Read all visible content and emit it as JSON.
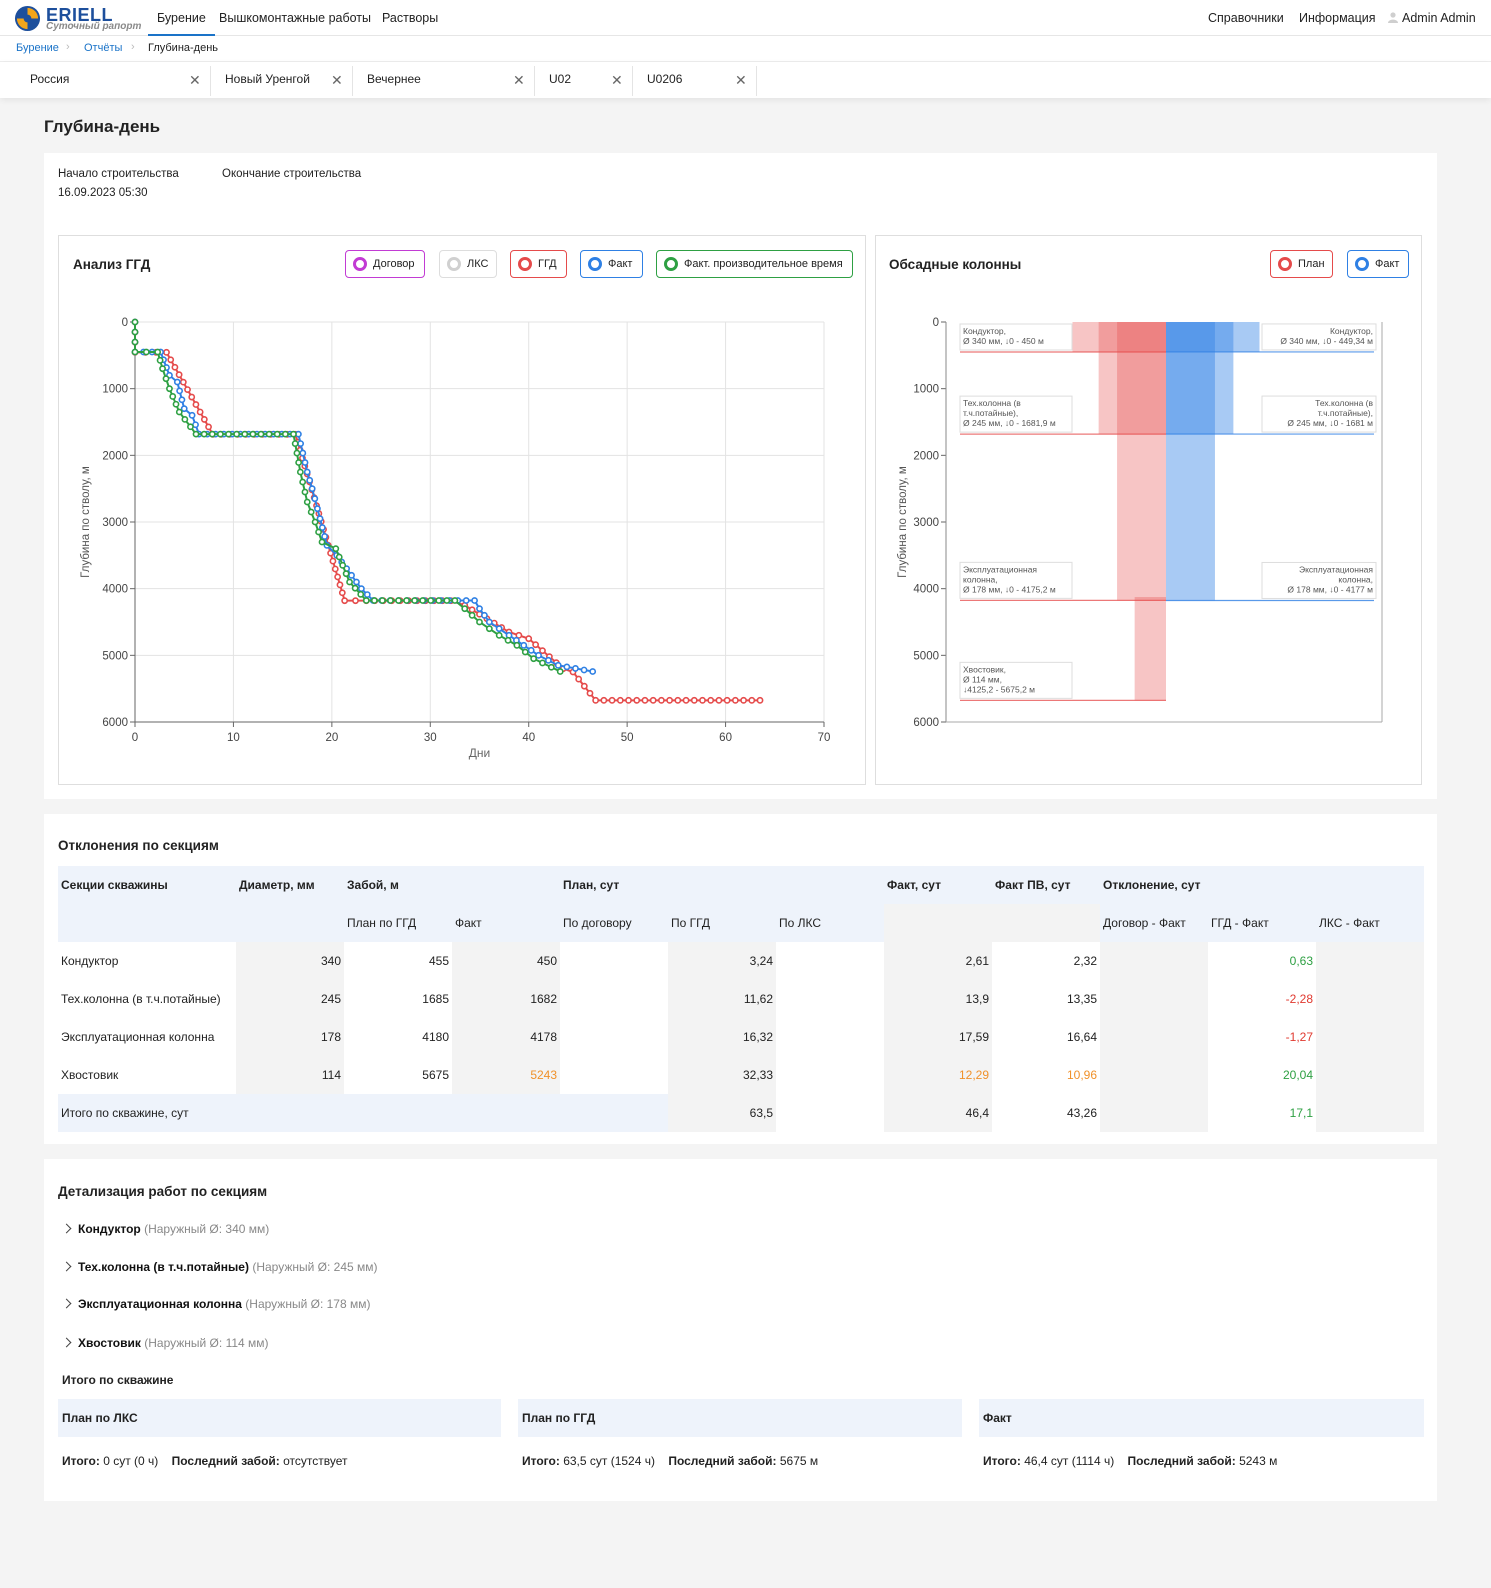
{
  "brand": {
    "name": "ERIELL",
    "subtitle": "Суточный рапорт"
  },
  "nav": {
    "main": [
      "Бурение",
      "Вышкомонтажные работы",
      "Растворы"
    ],
    "right": [
      "Справочники",
      "Информация"
    ],
    "user": "Admin Admin"
  },
  "breadcrumb": [
    "Бурение",
    "Отчёты",
    "Глубина-день"
  ],
  "filters": [
    "Россия",
    "Новый Уренгой",
    "Вечернее",
    "U02",
    "U0206"
  ],
  "page_title": "Глубина-день",
  "construction": {
    "start_label": "Начало строительства",
    "start_value": "16.09.2023 05:30",
    "end_label": "Окончание строительства"
  },
  "ggd_chart": {
    "title": "Анализ ГГД",
    "legend": [
      {
        "label": "Договор",
        "color": "#c23bd4"
      },
      {
        "label": "ЛКС",
        "color": "#cccccc"
      },
      {
        "label": "ГГД",
        "color": "#e54b4b"
      },
      {
        "label": "Факт",
        "color": "#2f80e4"
      },
      {
        "label": "Факт. производительное время",
        "color": "#2ea043"
      }
    ],
    "xlabel": "Дни",
    "ylabel": "Глубина по стволу, м",
    "x_ticks": [
      "0",
      "10",
      "20",
      "30",
      "40",
      "50",
      "60",
      "70"
    ],
    "y_ticks": [
      "0",
      "1000",
      "2000",
      "3000",
      "4000",
      "5000",
      "6000"
    ]
  },
  "casing_chart": {
    "title": "Обсадные колонны",
    "legend": [
      {
        "label": "План",
        "color": "#e54b4b"
      },
      {
        "label": "Факт",
        "color": "#2f80e4"
      }
    ],
    "ylabel": "Глубина по стволу, м",
    "y_ticks": [
      "0",
      "1000",
      "2000",
      "3000",
      "4000",
      "5000",
      "6000"
    ],
    "plan_labels": [
      [
        "Кондуктор,",
        "Ø 340 мм, ↓0 - 450 м"
      ],
      [
        "Тех.колонна (в",
        "т.ч.потайные),",
        "Ø 245 мм, ↓0 - 1681,9 м"
      ],
      [
        "Эксплуатационная",
        "колонна,",
        "Ø 178 мм, ↓0 - 4175,2 м"
      ],
      [
        "Хвостовик,",
        "Ø 114 мм,",
        "↓4125,2 - 5675,2 м"
      ]
    ],
    "fact_labels": [
      [
        "Кондуктор,",
        "Ø 340 мм, ↓0 - 449,34 м"
      ],
      [
        "Тех.колонна (в",
        "т.ч.потайные),",
        "Ø 245 мм, ↓0 - 1681 м"
      ],
      [
        "Эксплуатационная",
        "колонна,",
        "Ø 178 мм, ↓0 - 4177 м"
      ]
    ]
  },
  "chart_data": [
    {
      "type": "line",
      "title": "Анализ ГГД",
      "xlabel": "Дни",
      "ylabel": "Глубина по стволу, м",
      "xlim": [
        0,
        70
      ],
      "ylim": [
        6000,
        0
      ],
      "grid": true,
      "legend_position": "top-right",
      "series": [
        {
          "name": "ГГД",
          "color": "#e54b4b",
          "points": [
            [
              0,
              0
            ],
            [
              0,
              455
            ],
            [
              3.2,
              455
            ],
            [
              7.9,
              1685
            ],
            [
              16.3,
              1685
            ],
            [
              21.3,
              4180
            ],
            [
              23.5,
              4180
            ],
            [
              32.1,
              4180
            ],
            [
              33.5,
              4250
            ],
            [
              38,
              4650
            ],
            [
              40,
              4750
            ],
            [
              43.5,
              5200
            ],
            [
              44.5,
              5250
            ],
            [
              46.8,
              5675
            ],
            [
              63.5,
              5675
            ]
          ]
        },
        {
          "name": "Факт",
          "color": "#2f80e4",
          "points": [
            [
              0,
              0
            ],
            [
              0,
              450
            ],
            [
              2.6,
              450
            ],
            [
              3.5,
              800
            ],
            [
              4.3,
              900
            ],
            [
              5,
              1300
            ],
            [
              5.8,
              1400
            ],
            [
              6.5,
              1682
            ],
            [
              16.6,
              1682
            ],
            [
              17.5,
              2250
            ],
            [
              18,
              2500
            ],
            [
              18.8,
              2950
            ],
            [
              19.5,
              3350
            ],
            [
              20.5,
              3500
            ],
            [
              21.5,
              3700
            ],
            [
              23,
              4000
            ],
            [
              24.2,
              4178
            ],
            [
              32.8,
              4178
            ],
            [
              34.5,
              4178
            ],
            [
              35,
              4300
            ],
            [
              36,
              4500
            ],
            [
              38,
              4700
            ],
            [
              39.5,
              4850
            ],
            [
              41,
              5000
            ],
            [
              43,
              5150
            ],
            [
              46.5,
              5243
            ]
          ]
        },
        {
          "name": "Факт. производительное время",
          "color": "#2ea043",
          "points": [
            [
              0,
              0
            ],
            [
              0,
              450
            ],
            [
              2.3,
              450
            ],
            [
              2.8,
              700
            ],
            [
              3.5,
              1000
            ],
            [
              4.5,
              1350
            ],
            [
              6.2,
              1682
            ],
            [
              16.1,
              1682
            ],
            [
              16.8,
              2250
            ],
            [
              17.5,
              2700
            ],
            [
              18.3,
              3000
            ],
            [
              19,
              3300
            ],
            [
              20.4,
              3400
            ],
            [
              21.8,
              3900
            ],
            [
              23.5,
              4178
            ],
            [
              32.5,
              4178
            ],
            [
              33.5,
              4300
            ],
            [
              35,
              4500
            ],
            [
              37,
              4700
            ],
            [
              38.8,
              4850
            ],
            [
              40.5,
              5050
            ],
            [
              43.2,
              5243
            ]
          ]
        }
      ]
    },
    {
      "type": "bar",
      "title": "Обсадные колонны",
      "ylabel": "Глубина по стволу, м",
      "ylim": [
        6000,
        0
      ],
      "legend_position": "top-right",
      "series": [
        {
          "name": "План",
          "color": "#e54b4b",
          "intervals": [
            {
              "label": "Кондуктор",
              "diameter": 340,
              "from": 0,
              "to": 450
            },
            {
              "label": "Тех.колонна (в т.ч.потайные)",
              "diameter": 245,
              "from": 0,
              "to": 1681.9
            },
            {
              "label": "Эксплуатационная колонна",
              "diameter": 178,
              "from": 0,
              "to": 4175.2
            },
            {
              "label": "Хвостовик",
              "diameter": 114,
              "from": 4125.2,
              "to": 5675.2
            }
          ]
        },
        {
          "name": "Факт",
          "color": "#2f80e4",
          "intervals": [
            {
              "label": "Кондуктор",
              "diameter": 340,
              "from": 0,
              "to": 449.34
            },
            {
              "label": "Тех.колонна (в т.ч.потайные)",
              "diameter": 245,
              "from": 0,
              "to": 1681
            },
            {
              "label": "Эксплуатационная колонна",
              "diameter": 178,
              "from": 0,
              "to": 4177
            }
          ]
        }
      ]
    }
  ],
  "deviations": {
    "title": "Отклонения по секциям",
    "headers": {
      "sections": "Секции скважины",
      "diameter": "Диаметр, мм",
      "depth": "Забой, м",
      "plan": "План, сут",
      "fact": "Факт, сут",
      "fact_pv": "Факт ПВ, сут",
      "deviation": "Отклонение, сут",
      "depth_plan": "План по ГГД",
      "depth_fact": "Факт",
      "plan_contract": "По договору",
      "plan_ggd": "По ГГД",
      "plan_lks": "По ЛКС",
      "dev_contract": "Договор - Факт",
      "dev_ggd": "ГГД - Факт",
      "dev_lks": "ЛКС - Факт"
    },
    "rows": [
      {
        "name": "Кондуктор",
        "diameter": "340",
        "depth_plan": "455",
        "depth_fact": "450",
        "plan_contract": "",
        "plan_ggd": "3,24",
        "plan_lks": "",
        "fact": "2,61",
        "fact_pv": "2,32",
        "dev_contract": "",
        "dev_ggd": "0,63",
        "dev_lks": ""
      },
      {
        "name": "Тех.колонна (в т.ч.потайные)",
        "diameter": "245",
        "depth_plan": "1685",
        "depth_fact": "1682",
        "plan_contract": "",
        "plan_ggd": "11,62",
        "plan_lks": "",
        "fact": "13,9",
        "fact_pv": "13,35",
        "dev_contract": "",
        "dev_ggd": "-2,28",
        "dev_lks": ""
      },
      {
        "name": "Эксплуатационная колонна",
        "diameter": "178",
        "depth_plan": "4180",
        "depth_fact": "4178",
        "plan_contract": "",
        "plan_ggd": "16,32",
        "plan_lks": "",
        "fact": "17,59",
        "fact_pv": "16,64",
        "dev_contract": "",
        "dev_ggd": "-1,27",
        "dev_lks": ""
      },
      {
        "name": "Хвостовик",
        "diameter": "114",
        "depth_plan": "5675",
        "depth_fact": "5243",
        "plan_contract": "",
        "plan_ggd": "32,33",
        "plan_lks": "",
        "fact": "12,29",
        "fact_pv": "10,96",
        "dev_contract": "",
        "dev_ggd": "20,04",
        "dev_lks": ""
      }
    ],
    "total": {
      "label": "Итого по скважине, сут",
      "plan_ggd": "63,5",
      "fact": "46,4",
      "fact_pv": "43,26",
      "dev_ggd": "17,1"
    }
  },
  "details": {
    "title": "Детализация работ по секциям",
    "sections": [
      {
        "name": "Кондуктор",
        "note": "(Наружный Ø: 340 мм)"
      },
      {
        "name": "Тех.колонна (в т.ч.потайные)",
        "note": "(Наружный Ø: 245 мм)"
      },
      {
        "name": "Эксплуатационная колонна",
        "note": "(Наружный Ø: 178 мм)"
      },
      {
        "name": "Хвостовик",
        "note": "(Наружный Ø: 114 мм)"
      }
    ],
    "total_title": "Итого по скважине",
    "total_label": "Итого:",
    "last_label": "Последний забой:",
    "summary": [
      {
        "head": "План по ЛКС",
        "total": "0 сут (0 ч)",
        "last": "отсутствует"
      },
      {
        "head": "План по ГГД",
        "total": "63,5 сут (1524 ч)",
        "last": "5675 м"
      },
      {
        "head": "Факт",
        "total": "46,4 сут (1114 ч)",
        "last": "5243 м"
      }
    ]
  }
}
